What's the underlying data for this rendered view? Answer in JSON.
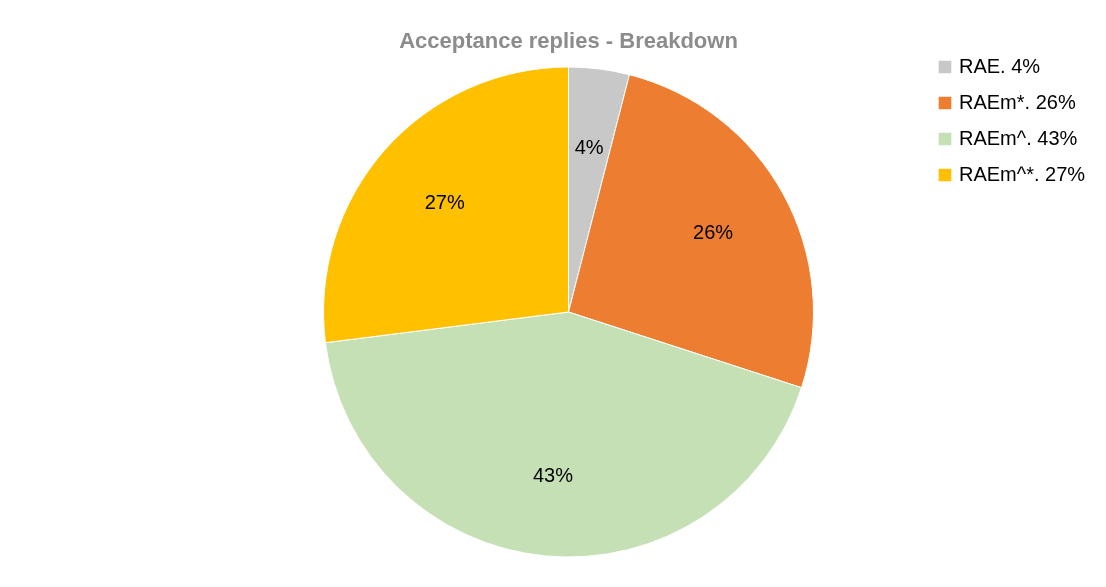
{
  "chart_data": {
    "type": "pie",
    "title": "Acceptance replies - Breakdown",
    "categories": [
      "RAE. 4%",
      "RAEm*. 26%",
      "RAEm^. 43%",
      "RAEm^*. 27%"
    ],
    "values": [
      4,
      26,
      43,
      27
    ],
    "colors": [
      "#c8c8c8",
      "#ed7d31",
      "#c5e0b4",
      "#ffc000"
    ],
    "value_labels": [
      "4%",
      "26%",
      "43%",
      "27%"
    ],
    "legend": "right"
  }
}
